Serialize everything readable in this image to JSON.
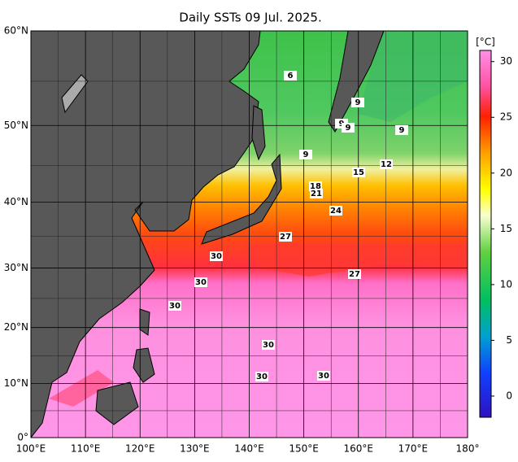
{
  "title": "Daily SSTs 09 Jul. 2025.",
  "map": {
    "lat_range": [
      0,
      60
    ],
    "lon_range": [
      100,
      180
    ],
    "lat_ticks": [
      {
        "value": 0,
        "label": "0°"
      },
      {
        "value": 10,
        "label": "10°N"
      },
      {
        "value": 20,
        "label": "20°N"
      },
      {
        "value": 30,
        "label": "30°N"
      },
      {
        "value": 40,
        "label": "40°N"
      },
      {
        "value": 50,
        "label": "50°N"
      },
      {
        "value": 60,
        "label": "60°N"
      }
    ],
    "lon_ticks": [
      {
        "value": 100,
        "label": "100°E"
      },
      {
        "value": 110,
        "label": "110°E"
      },
      {
        "value": 120,
        "label": "120°E"
      },
      {
        "value": 130,
        "label": "130°E"
      },
      {
        "value": 140,
        "label": "140°E"
      },
      {
        "value": 150,
        "label": "150°E"
      },
      {
        "value": 160,
        "label": "160°E"
      },
      {
        "value": 170,
        "label": "170°E"
      },
      {
        "value": 180,
        "label": "180°"
      }
    ],
    "contour_labels": [
      6,
      9,
      9,
      9,
      9,
      9,
      12,
      15,
      18,
      21,
      24,
      27,
      27,
      30,
      30,
      30,
      30,
      30,
      30
    ]
  },
  "colorbar": {
    "unit": "[°C]",
    "range": [
      -1.9,
      31
    ],
    "ticks": [
      0,
      5,
      10,
      15,
      20,
      25,
      30
    ]
  }
}
